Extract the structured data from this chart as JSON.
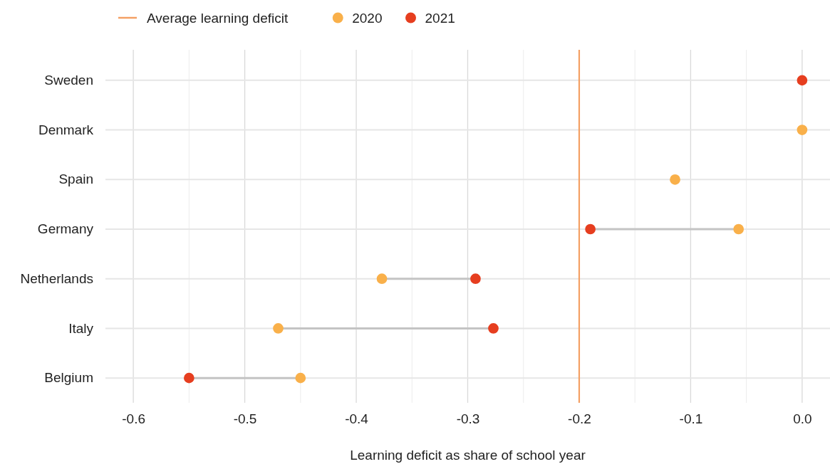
{
  "chart_data": {
    "type": "scatter",
    "orientation": "horizontal",
    "xlabel": "Learning deficit as share of school year",
    "categories": [
      "Sweden",
      "Denmark",
      "Spain",
      "Germany",
      "Netherlands",
      "Italy",
      "Belgium"
    ],
    "series": [
      {
        "name": "2020",
        "color": "#f9b04a",
        "values": [
          null,
          0,
          -0.114,
          -0.057,
          -0.377,
          -0.47,
          -0.45
        ]
      },
      {
        "name": "2021",
        "color": "#e63e1f",
        "values": [
          0,
          null,
          null,
          -0.19,
          -0.293,
          -0.277,
          -0.55
        ]
      }
    ],
    "xlim": [
      -0.625,
      0.025
    ],
    "xticks": [
      -0.6,
      {
        "value": -0.55,
        "label": null
      },
      -0.5,
      {
        "value": -0.45,
        "label": null
      },
      -0.4,
      {
        "value": -0.35,
        "label": null
      },
      -0.3,
      {
        "value": -0.25,
        "label": null
      },
      -0.2,
      {
        "value": -0.15,
        "label": null
      },
      -0.1,
      {
        "value": -0.05,
        "label": null
      },
      {
        "value": 0,
        "label": "0.0"
      }
    ],
    "ref_lines": [
      {
        "axis": "x",
        "value": -0.2,
        "label": "Average learning deficit",
        "color": "#f4a064"
      }
    ],
    "grid": true,
    "legend": "top left",
    "marker": "circle"
  }
}
